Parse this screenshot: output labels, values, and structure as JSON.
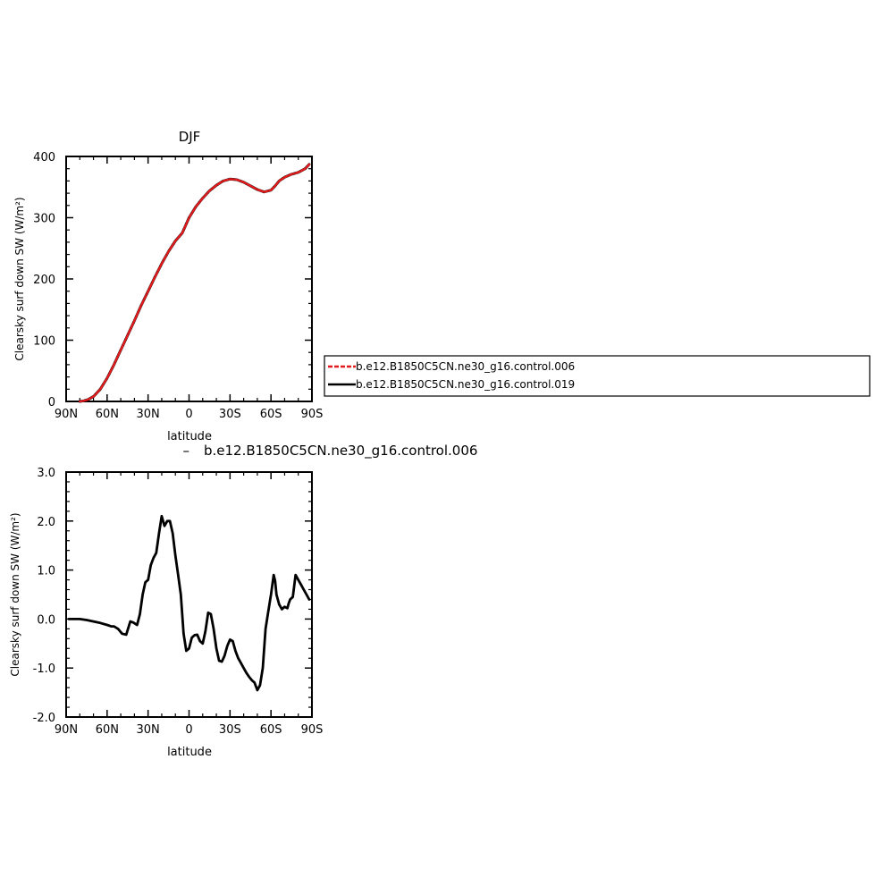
{
  "colors": {
    "series_006": "#e41a1c",
    "series_019": "#000000",
    "diff": "#000000",
    "axis": "#000000"
  },
  "chart_data": [
    {
      "type": "line",
      "title": "DJF",
      "xlabel": "latitude",
      "ylabel": "Clearsky surf down SW (W/m²)",
      "xlim": [
        90,
        -90
      ],
      "ylim": [
        0,
        400
      ],
      "x_ticks": [
        90,
        60,
        30,
        0,
        -30,
        -60,
        -90
      ],
      "x_tick_labels": [
        "90N",
        "60N",
        "30N",
        "0",
        "30S",
        "60S",
        "90S"
      ],
      "y_ticks": [
        0,
        100,
        200,
        300,
        400
      ],
      "y_tick_labels": [
        "0",
        "100",
        "200",
        "300",
        "400"
      ],
      "grid": false,
      "legend": {
        "placement": "right",
        "entries": [
          "b.e12.B1850C5CN.ne30_g16.control.006",
          "b.e12.B1850C5CN.ne30_g16.control.019"
        ]
      },
      "x": [
        80,
        77,
        74,
        70,
        65,
        60,
        55,
        50,
        45,
        40,
        35,
        30,
        25,
        20,
        15,
        10,
        5,
        0,
        -5,
        -10,
        -15,
        -20,
        -25,
        -30,
        -35,
        -40,
        -45,
        -50,
        -55,
        -60,
        -63,
        -66,
        -70,
        -75,
        -80,
        -85,
        -88
      ],
      "series": [
        {
          "name": "b.e12.B1850C5CN.ne30_g16.control.006",
          "style": "dashed",
          "values": [
            0,
            1,
            3,
            8,
            20,
            38,
            60,
            84,
            108,
            132,
            157,
            180,
            203,
            225,
            245,
            262,
            275,
            300,
            318,
            332,
            344,
            353,
            360,
            363,
            362,
            358,
            352,
            346,
            342,
            345,
            352,
            360,
            366,
            371,
            374,
            380,
            387
          ]
        },
        {
          "name": "b.e12.B1850C5CN.ne30_g16.control.019",
          "style": "solid",
          "values": [
            0,
            1,
            3,
            8,
            20,
            38,
            60,
            84,
            108,
            132,
            157,
            180,
            203,
            225,
            245,
            262,
            275,
            300,
            318,
            332,
            344,
            353,
            360,
            363,
            362,
            358,
            352,
            346,
            342,
            345,
            352,
            360,
            366,
            371,
            374,
            380,
            387
          ]
        }
      ]
    },
    {
      "type": "line",
      "title": "b.e12.B1850C5CN.ne30_g16.control.006",
      "xlabel": "latitude",
      "ylabel": "Clearsky surf down SW (W/m²)",
      "xlim": [
        90,
        -90
      ],
      "ylim": [
        -2.0,
        3.0
      ],
      "x_ticks": [
        90,
        60,
        30,
        0,
        -30,
        -60,
        -90
      ],
      "x_tick_labels": [
        "90N",
        "60N",
        "30N",
        "0",
        "30S",
        "60S",
        "90S"
      ],
      "y_ticks": [
        -2,
        -1,
        0,
        1,
        2,
        3
      ],
      "y_tick_labels": [
        "-2.0",
        "-1.0",
        "0.0",
        "1.0",
        "2.0",
        "3.0"
      ],
      "grid": false,
      "x": [
        88,
        80,
        75,
        70,
        65,
        60,
        57,
        55,
        52,
        49,
        46,
        43,
        41,
        38,
        36,
        34,
        32,
        30,
        28,
        26,
        24,
        22,
        20,
        18,
        16,
        14,
        12,
        10,
        8,
        6,
        4,
        2,
        0,
        -2,
        -4,
        -6,
        -8,
        -10,
        -12,
        -14,
        -16,
        -18,
        -20,
        -22,
        -24,
        -26,
        -28,
        -30,
        -32,
        -34,
        -36,
        -38,
        -40,
        -42,
        -44,
        -46,
        -48,
        -50,
        -52,
        -54,
        -56,
        -58,
        -60,
        -62,
        -63,
        -64,
        -66,
        -68,
        -70,
        -72,
        -73,
        -74,
        -76,
        -78,
        -80,
        -82,
        -84,
        -86,
        -88
      ],
      "series": [
        {
          "name": "",
          "values": [
            0,
            0,
            -0.02,
            -0.05,
            -0.08,
            -0.12,
            -0.15,
            -0.15,
            -0.2,
            -0.3,
            -0.32,
            -0.05,
            -0.07,
            -0.12,
            0.1,
            0.5,
            0.75,
            0.8,
            1.1,
            1.25,
            1.35,
            1.75,
            2.1,
            1.9,
            2.0,
            2.0,
            1.75,
            1.3,
            0.9,
            0.5,
            -0.3,
            -0.65,
            -0.6,
            -0.38,
            -0.33,
            -0.32,
            -0.45,
            -0.5,
            -0.25,
            0.13,
            0.1,
            -0.2,
            -0.6,
            -0.85,
            -0.87,
            -0.75,
            -0.55,
            -0.42,
            -0.45,
            -0.65,
            -0.8,
            -0.9,
            -1.0,
            -1.1,
            -1.18,
            -1.25,
            -1.3,
            -1.45,
            -1.35,
            -1.0,
            -0.2,
            0.15,
            0.5,
            0.9,
            0.78,
            0.5,
            0.3,
            0.2,
            0.25,
            0.22,
            0.32,
            0.4,
            0.45,
            0.9,
            0.8,
            0.7,
            0.6,
            0.5,
            0.4
          ]
        }
      ]
    }
  ]
}
